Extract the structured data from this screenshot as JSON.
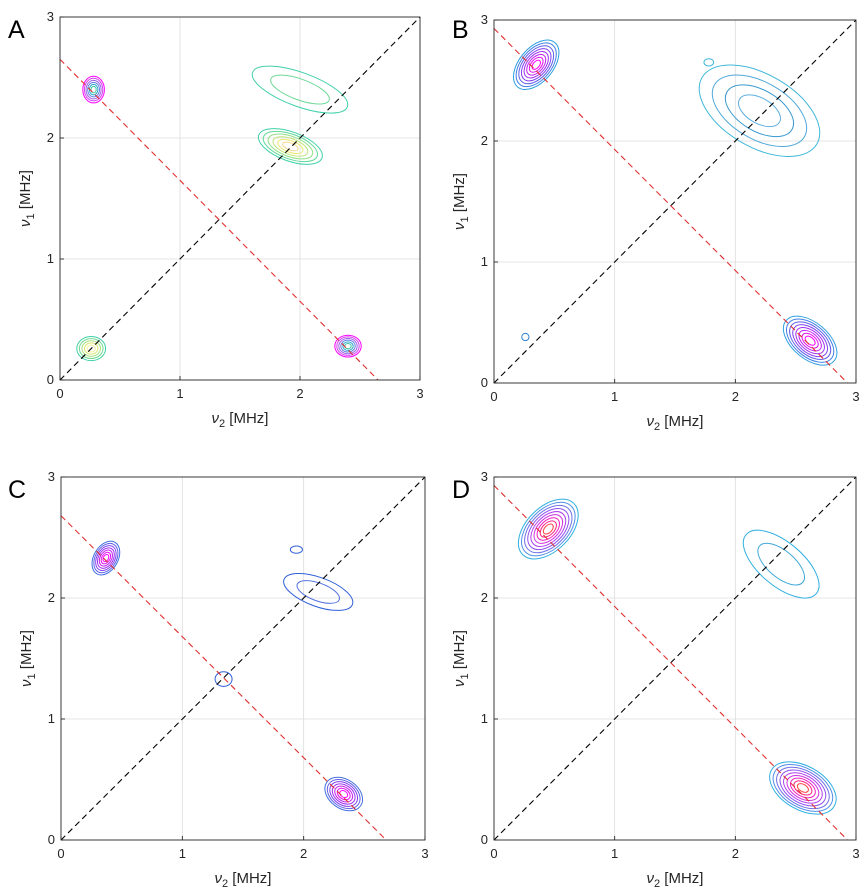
{
  "chart_data": [
    {
      "type": "contour",
      "panel_label": "A",
      "xlabel": "ν",
      "xlabel_sub": "2",
      "xlabel_unit": " [MHz]",
      "ylabel": "ν",
      "ylabel_sub": "1",
      "ylabel_unit": " [MHz]",
      "xlim": [
        0,
        3
      ],
      "ylim": [
        0,
        3
      ],
      "xticks": [
        "0",
        "1",
        "2",
        "3"
      ],
      "yticks": [
        "0",
        "1",
        "2",
        "3"
      ],
      "grid": true,
      "diagonal": {
        "from": [
          0,
          0
        ],
        "to": [
          3,
          3
        ],
        "color": "#000000"
      },
      "antidiagonal": {
        "from": [
          0,
          2.65
        ],
        "to": [
          2.65,
          0
        ],
        "color": "#e03030"
      },
      "peaks": [
        {
          "x": 0.28,
          "y": 2.4,
          "rx": 0.09,
          "ry": 0.11,
          "angle": 0,
          "levels": 6,
          "colors": [
            "#ff00ff",
            "#d040f0",
            "#a060e8",
            "#6080e0",
            "#30a8d0",
            "#40c8a0"
          ]
        },
        {
          "x": 2.4,
          "y": 0.28,
          "rx": 0.11,
          "ry": 0.09,
          "angle": 0,
          "levels": 6,
          "colors": [
            "#ff00ff",
            "#d040f0",
            "#a060e8",
            "#6080e0",
            "#30a8d0",
            "#40c8a0"
          ]
        },
        {
          "x": 0.26,
          "y": 0.26,
          "rx": 0.12,
          "ry": 0.1,
          "angle": 0,
          "levels": 5,
          "colors": [
            "#40d0a8",
            "#70d890",
            "#a8e080",
            "#d8e870",
            "#f4f0a0"
          ]
        },
        {
          "x": 1.92,
          "y": 1.93,
          "rx": 0.28,
          "ry": 0.12,
          "angle": -20,
          "levels": 6,
          "colors": [
            "#40d0a8",
            "#60d898",
            "#90e088",
            "#c0e478",
            "#e8e870",
            "#f4d890"
          ]
        },
        {
          "x": 2.0,
          "y": 2.4,
          "rx": 0.42,
          "ry": 0.14,
          "angle": -20,
          "levels": 2,
          "colors": [
            "#40d0a8",
            "#70d898"
          ]
        }
      ]
    },
    {
      "type": "contour",
      "panel_label": "B",
      "xlabel": "ν",
      "xlabel_sub": "2",
      "xlabel_unit": " [MHz]",
      "ylabel": "ν",
      "ylabel_sub": "1",
      "ylabel_unit": " [MHz]",
      "xlim": [
        0,
        3
      ],
      "ylim": [
        0,
        3
      ],
      "xticks": [
        "0",
        "1",
        "2",
        "3"
      ],
      "yticks": [
        "0",
        "1",
        "2",
        "3"
      ],
      "grid": true,
      "diagonal": {
        "from": [
          0,
          0
        ],
        "to": [
          3,
          3
        ],
        "color": "#000000"
      },
      "antidiagonal": {
        "from": [
          0,
          2.93
        ],
        "to": [
          2.93,
          0
        ],
        "color": "#e03030"
      },
      "peaks": [
        {
          "x": 0.35,
          "y": 2.63,
          "rx": 0.24,
          "ry": 0.14,
          "angle": 50,
          "levels": 8,
          "colors": [
            "#30a0e0",
            "#4080e8",
            "#6060e8",
            "#8040f0",
            "#a030f0",
            "#c020f0",
            "#e010f0",
            "#ff00ff"
          ]
        },
        {
          "x": 2.62,
          "y": 0.35,
          "rx": 0.26,
          "ry": 0.15,
          "angle": -40,
          "levels": 8,
          "colors": [
            "#30a0e0",
            "#4080e8",
            "#6060e8",
            "#8040f0",
            "#a030f0",
            "#c020f0",
            "#e010f0",
            "#ff00ff"
          ]
        },
        {
          "x": 2.2,
          "y": 2.25,
          "rx": 0.55,
          "ry": 0.3,
          "angle": -30,
          "levels": 4,
          "colors": [
            "#40b8d8",
            "#50a8d8",
            "#3898d0",
            "#60b0e0"
          ]
        },
        {
          "x": 0.26,
          "y": 0.38,
          "rx": 0.03,
          "ry": 0.03,
          "angle": 0,
          "levels": 1,
          "colors": [
            "#3080d0"
          ]
        },
        {
          "x": 1.78,
          "y": 2.65,
          "rx": 0.04,
          "ry": 0.03,
          "angle": 0,
          "levels": 1,
          "colors": [
            "#40b8d8"
          ]
        }
      ]
    },
    {
      "type": "contour",
      "panel_label": "C",
      "xlabel": "ν",
      "xlabel_sub": "2",
      "xlabel_unit": " [MHz]",
      "ylabel": "ν",
      "ylabel_sub": "1",
      "ylabel_unit": " [MHz]",
      "xlim": [
        0,
        3
      ],
      "ylim": [
        0,
        3
      ],
      "xticks": [
        "0",
        "1",
        "2",
        "3"
      ],
      "yticks": [
        "0",
        "1",
        "2",
        "3"
      ],
      "grid": true,
      "diagonal": {
        "from": [
          0,
          0
        ],
        "to": [
          3,
          3
        ],
        "color": "#000000"
      },
      "antidiagonal": {
        "from": [
          0,
          2.68
        ],
        "to": [
          2.68,
          0
        ],
        "color": "#e03030"
      },
      "peaks": [
        {
          "x": 0.37,
          "y": 2.33,
          "rx": 0.15,
          "ry": 0.1,
          "angle": 60,
          "levels": 7,
          "colors": [
            "#4070e0",
            "#6060e8",
            "#8040f0",
            "#a030f0",
            "#c020f0",
            "#e010f0",
            "#ff00ff"
          ]
        },
        {
          "x": 2.33,
          "y": 0.38,
          "rx": 0.17,
          "ry": 0.12,
          "angle": -35,
          "levels": 7,
          "colors": [
            "#4070e0",
            "#6060e8",
            "#8040f0",
            "#a030f0",
            "#c020f0",
            "#e010f0",
            "#ff00ff"
          ]
        },
        {
          "x": 2.12,
          "y": 2.05,
          "rx": 0.3,
          "ry": 0.12,
          "angle": -20,
          "levels": 2,
          "colors": [
            "#3060d8",
            "#5070e0"
          ]
        },
        {
          "x": 1.34,
          "y": 1.33,
          "rx": 0.07,
          "ry": 0.06,
          "angle": 0,
          "levels": 1,
          "colors": [
            "#3060d8"
          ]
        },
        {
          "x": 1.94,
          "y": 2.4,
          "rx": 0.05,
          "ry": 0.03,
          "angle": 0,
          "levels": 1,
          "colors": [
            "#3060d8"
          ]
        }
      ]
    },
    {
      "type": "contour",
      "panel_label": "D",
      "xlabel": "ν",
      "xlabel_sub": "2",
      "xlabel_unit": " [MHz]",
      "ylabel": "ν",
      "ylabel_sub": "1",
      "ylabel_unit": " [MHz]",
      "xlim": [
        0,
        3
      ],
      "ylim": [
        0,
        3
      ],
      "xticks": [
        "0",
        "1",
        "2",
        "3"
      ],
      "yticks": [
        "0",
        "1",
        "2",
        "3"
      ],
      "grid": true,
      "diagonal": {
        "from": [
          0,
          0
        ],
        "to": [
          3,
          3
        ],
        "color": "#000000"
      },
      "antidiagonal": {
        "from": [
          0,
          2.93
        ],
        "to": [
          2.93,
          0
        ],
        "color": "#e03030"
      },
      "peaks": [
        {
          "x": 0.45,
          "y": 2.57,
          "rx": 0.3,
          "ry": 0.18,
          "angle": 45,
          "levels": 9,
          "colors": [
            "#30b0e0",
            "#5090e8",
            "#7070e8",
            "#9050f0",
            "#b040f0",
            "#d030e0",
            "#f020c0",
            "#ff2080",
            "#ff4040"
          ]
        },
        {
          "x": 2.56,
          "y": 0.43,
          "rx": 0.3,
          "ry": 0.18,
          "angle": -30,
          "levels": 9,
          "colors": [
            "#30b0e0",
            "#5090e8",
            "#7070e8",
            "#9050f0",
            "#b040f0",
            "#d030e0",
            "#f020c0",
            "#ff2080",
            "#ff4040"
          ]
        },
        {
          "x": 2.38,
          "y": 2.28,
          "rx": 0.38,
          "ry": 0.18,
          "angle": -40,
          "levels": 2,
          "colors": [
            "#30b0e0",
            "#40a8d8"
          ]
        }
      ]
    }
  ]
}
